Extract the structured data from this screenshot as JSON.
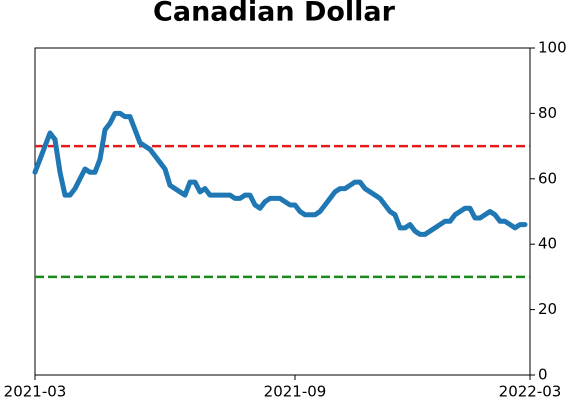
{
  "chart_data": {
    "type": "line",
    "title": "Canadian Dollar",
    "categories": [
      "2021-03",
      null,
      null,
      null,
      null,
      null,
      null,
      null,
      null,
      null,
      null,
      null,
      null,
      null,
      null,
      null,
      null,
      null,
      null,
      null,
      null,
      null,
      null,
      null,
      null,
      null,
      null,
      null,
      null,
      null,
      null,
      null,
      null,
      null,
      null,
      null,
      null,
      null,
      null,
      null,
      null,
      null,
      null,
      null,
      null,
      null,
      null,
      null,
      null,
      null,
      null,
      null,
      "2021-09",
      null,
      null,
      null,
      null,
      null,
      null,
      null,
      null,
      null,
      null,
      null,
      null,
      null,
      null,
      null,
      null,
      null,
      null,
      null,
      null,
      null,
      null,
      null,
      null,
      null,
      null,
      null,
      null,
      null,
      null,
      null,
      null,
      null,
      null,
      null,
      null,
      null,
      null,
      null,
      null,
      null,
      null,
      null,
      null,
      null,
      null,
      "2022-03"
    ],
    "series": [
      {
        "color": "#1f77b4",
        "values": [
          62,
          66,
          70,
          74,
          72,
          62,
          55,
          55,
          57,
          60,
          63,
          62,
          62,
          66,
          75,
          77,
          80,
          80,
          79,
          79,
          75,
          71,
          70,
          69,
          67,
          65,
          63,
          58,
          57,
          56,
          55,
          59,
          59,
          56,
          57,
          55,
          55,
          55,
          55,
          55,
          54,
          54,
          55,
          55,
          52,
          51,
          53,
          54,
          54,
          54,
          53,
          52,
          52,
          50,
          49,
          49,
          49,
          50,
          52,
          54,
          56,
          57,
          57,
          58,
          59,
          59,
          57,
          56,
          55,
          54,
          52,
          50,
          49,
          45,
          45,
          46,
          44,
          43,
          43,
          44,
          45,
          46,
          47,
          47,
          49,
          50,
          51,
          51,
          48,
          48,
          49,
          50,
          49,
          47,
          47,
          46,
          45,
          46,
          46,
          null
        ]
      }
    ],
    "reference_lines": [
      {
        "value": 70,
        "color": "#e41a1c"
      },
      {
        "value": 30,
        "color": "#1a8a1a"
      }
    ],
    "ylim": [
      0,
      100
    ],
    "yticks": [
      0,
      20,
      40,
      60,
      80,
      100
    ],
    "y_axis_side": "right",
    "grid": false
  }
}
